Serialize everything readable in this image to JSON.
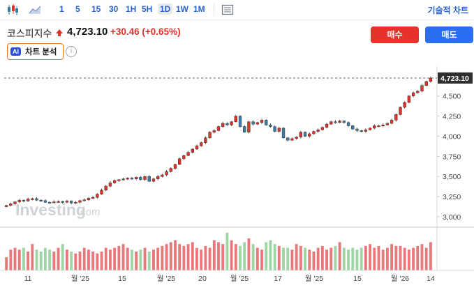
{
  "toolbar": {
    "timeframes": [
      "1",
      "5",
      "15",
      "30",
      "1H",
      "5H",
      "1D",
      "1W",
      "1M"
    ],
    "active_timeframe": "1D",
    "advanced_chart_label": "기술적 차트"
  },
  "instrument": {
    "name": "코스피지수",
    "price": "4,723.10",
    "change": "+30.46 (+0.65%)"
  },
  "actions": {
    "buy_label": "매수",
    "sell_label": "매도"
  },
  "ai": {
    "badge": "AI",
    "label": "차트 분석"
  },
  "watermark": "Investing",
  "watermark_suffix": ".com",
  "colors": {
    "up": "#e8312a",
    "down": "#3d7ea6",
    "volume_up": "#e8787a",
    "volume_down": "#9fd5a5",
    "accent": "#2a63d4"
  },
  "chart_data": {
    "type": "candlestick",
    "current_price": 4723.1,
    "current_price_label": "4,723.10",
    "y_ticks": [
      3000,
      3250,
      3500,
      3750,
      4000,
      4250,
      4500
    ],
    "y_tick_labels": [
      "3,000",
      "3,250",
      "3,500",
      "3,750",
      "4,000",
      "4,250",
      "4,500"
    ],
    "ylim": [
      2870,
      4870
    ],
    "x_labels": [
      "11",
      "월 '25",
      "15",
      "월 '25",
      "20",
      "월 '25",
      "17",
      "월 '25",
      "15",
      "월 '26",
      "14"
    ],
    "closes": [
      3140,
      3160,
      3185,
      3205,
      3195,
      3220,
      3225,
      3205,
      3200,
      3180,
      3175,
      3185,
      3190,
      3180,
      3195,
      3170,
      3180,
      3200,
      3210,
      3230,
      3240,
      3280,
      3330,
      3380,
      3420,
      3450,
      3460,
      3470,
      3480,
      3470,
      3490,
      3460,
      3500,
      3440,
      3470,
      3500,
      3520,
      3560,
      3600,
      3650,
      3720,
      3760,
      3800,
      3840,
      3880,
      3920,
      3980,
      4050,
      4070,
      4120,
      4160,
      4140,
      4180,
      4250,
      4120,
      4050,
      4180,
      4150,
      4170,
      4200,
      4140,
      4120,
      4060,
      4100,
      3980,
      3950,
      3970,
      3990,
      4050,
      4000,
      4030,
      4060,
      4080,
      4110,
      4150,
      4180,
      4170,
      4190,
      4170,
      4130,
      4090,
      4070,
      4060,
      4080,
      4100,
      4130,
      4130,
      4140,
      4160,
      4200,
      4270,
      4360,
      4420,
      4500,
      4540,
      4560,
      4630,
      4680,
      4723
    ],
    "volumes": [
      0.35,
      0.55,
      0.6,
      0.55,
      0.6,
      0.5,
      0.7,
      0.55,
      0.5,
      0.6,
      0.55,
      0.5,
      0.6,
      0.7,
      0.55,
      0.5,
      0.45,
      0.5,
      0.6,
      0.55,
      0.5,
      0.45,
      0.5,
      0.6,
      0.55,
      0.6,
      0.65,
      0.7,
      0.6,
      0.55,
      0.5,
      0.55,
      0.6,
      0.5,
      0.55,
      0.6,
      0.65,
      0.7,
      0.75,
      0.8,
      0.7,
      0.65,
      0.7,
      0.75,
      0.6,
      0.55,
      0.65,
      0.6,
      0.8,
      0.75,
      0.7,
      1.0,
      0.8,
      0.7,
      0.65,
      0.75,
      0.85,
      0.7,
      0.6,
      0.55,
      0.75,
      0.8,
      0.7,
      0.65,
      0.6,
      0.6,
      0.55,
      0.7,
      0.65,
      0.6,
      0.55,
      0.5,
      0.6,
      0.65,
      0.55,
      0.6,
      0.65,
      0.75,
      0.6,
      0.55,
      0.6,
      0.55,
      0.6,
      0.65,
      0.7,
      0.6,
      0.65,
      0.55,
      0.6,
      0.7,
      0.65,
      0.65,
      0.6,
      0.55,
      0.6,
      0.65,
      0.7,
      0.6,
      0.75
    ]
  }
}
